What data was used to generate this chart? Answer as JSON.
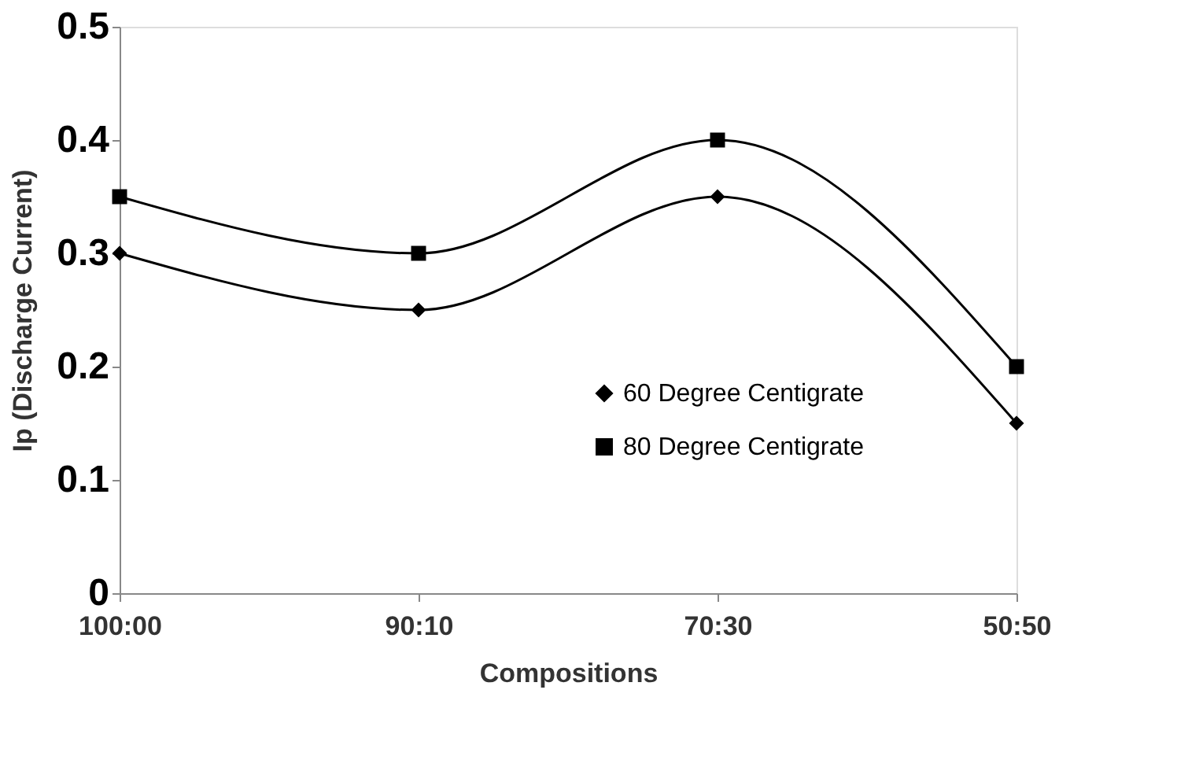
{
  "chart_data": {
    "type": "line",
    "xlabel": "Compositions",
    "ylabel": "Ip (Discharge Current)",
    "categories": [
      "100:00",
      "90:10",
      "70:30",
      "50:50"
    ],
    "series": [
      {
        "name": "60 Degree Centigrate",
        "color": "#000000",
        "marker": "diamond",
        "values": [
          0.3,
          0.25,
          0.35,
          0.15
        ]
      },
      {
        "name": "80 Degree Centigrate",
        "color": "#000000",
        "marker": "square",
        "values": [
          0.35,
          0.3,
          0.4,
          0.2
        ]
      }
    ],
    "ylim": [
      0,
      0.5
    ],
    "yticks": [
      0,
      0.1,
      0.2,
      0.3,
      0.4,
      0.5
    ],
    "grid": false,
    "legend": "right",
    "line_style": "solid"
  }
}
